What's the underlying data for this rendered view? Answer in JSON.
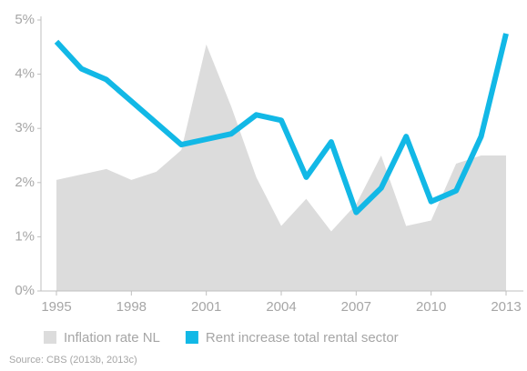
{
  "chart_data": {
    "type": "line",
    "x": [
      1995,
      1996,
      1997,
      1998,
      1999,
      2000,
      2001,
      2002,
      2003,
      2004,
      2005,
      2006,
      2007,
      2008,
      2009,
      2010,
      2011,
      2012,
      2013
    ],
    "xlim": [
      1995,
      2013
    ],
    "xticks": [
      1995,
      1998,
      2001,
      2004,
      2007,
      2010,
      2013
    ],
    "ylim": [
      0,
      5
    ],
    "yticks": [
      {
        "value": 0,
        "label": "0%"
      },
      {
        "value": 1,
        "label": "1%"
      },
      {
        "value": 2,
        "label": "2%"
      },
      {
        "value": 3,
        "label": "3%"
      },
      {
        "value": 4,
        "label": "4%"
      },
      {
        "value": 5,
        "label": "5%"
      }
    ],
    "series": [
      {
        "name": "Inflation rate NL",
        "type": "area",
        "color": "#dcdcdc",
        "values": [
          2.05,
          2.15,
          2.25,
          2.05,
          2.2,
          2.6,
          4.55,
          3.4,
          2.1,
          1.2,
          1.7,
          1.1,
          1.6,
          2.5,
          1.2,
          1.3,
          2.35,
          2.5,
          2.5
        ]
      },
      {
        "name": "Rent increase total rental sector",
        "type": "line",
        "color": "#12b8e6",
        "values": [
          4.6,
          4.1,
          3.9,
          3.5,
          3.1,
          2.7,
          2.8,
          2.9,
          3.25,
          3.15,
          2.1,
          2.75,
          1.45,
          1.9,
          2.85,
          1.65,
          1.85,
          2.85,
          4.75
        ]
      }
    ],
    "legend": "bottom",
    "source": "Source: CBS (2013b, 2013c)"
  }
}
